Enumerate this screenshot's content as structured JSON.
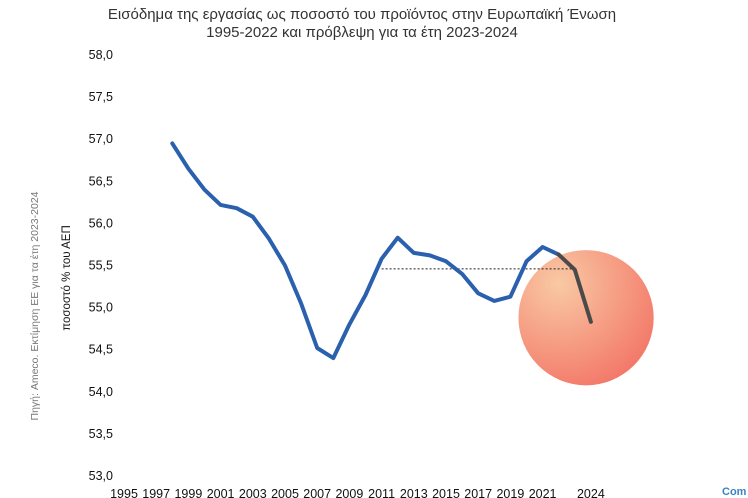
{
  "chart_data": {
    "type": "line",
    "title": [
      "Εισόδημα της εργασίας ως ποσοστό του προϊόντος στην Ευρωπαϊκή Ένωση",
      "1995-2022 και πρόβλεψη για τα έτη 2023-2024"
    ],
    "ylabel": "ποσοστό % του ΑΕΠ",
    "source": "Πηγή: Ameco. Εκτίμηση ΕΕ για τα έτη 2023-2024",
    "ylim": [
      53.0,
      58.0
    ],
    "yticks": [
      "53,0",
      "53,5",
      "54,0",
      "54,5",
      "55,0",
      "55,5",
      "56,0",
      "56,5",
      "57,0",
      "57,5",
      "58,0"
    ],
    "xticks": [
      "1995",
      "1997",
      "1999",
      "2001",
      "2003",
      "2005",
      "2007",
      "2009",
      "2011",
      "2013",
      "2015",
      "2017",
      "2019",
      "2021",
      "2024"
    ],
    "series": [
      {
        "color": "#2a60ad",
        "x": [
          1998,
          1999,
          2000,
          2001,
          2002,
          2003,
          2004,
          2005,
          2006,
          2007,
          2008,
          2009,
          2010,
          2011,
          2012,
          2013,
          2014,
          2015,
          2016,
          2017,
          2018,
          2019,
          2020,
          2021,
          2022
        ],
        "y": [
          56.95,
          56.65,
          56.4,
          56.22,
          56.18,
          56.08,
          55.82,
          55.5,
          55.05,
          54.52,
          54.4,
          54.8,
          55.15,
          55.58,
          55.83,
          55.65,
          55.62,
          55.55,
          55.4,
          55.17,
          55.08,
          55.13,
          55.55,
          55.72,
          55.63
        ]
      },
      {
        "color": "#4a4a4a",
        "x": [
          2022,
          2023,
          2024
        ],
        "y": [
          55.63,
          55.45,
          54.83
        ]
      }
    ],
    "reference_line": {
      "y": 55.46,
      "x": [
        2011,
        2023
      ],
      "style": "dotted"
    },
    "highlight_circle": {
      "x": 2023.7,
      "y": 54.88,
      "r_years": 4.2,
      "colors": [
        "#f9c9a4",
        "#f37a6a"
      ]
    },
    "corner_text": "Com"
  }
}
